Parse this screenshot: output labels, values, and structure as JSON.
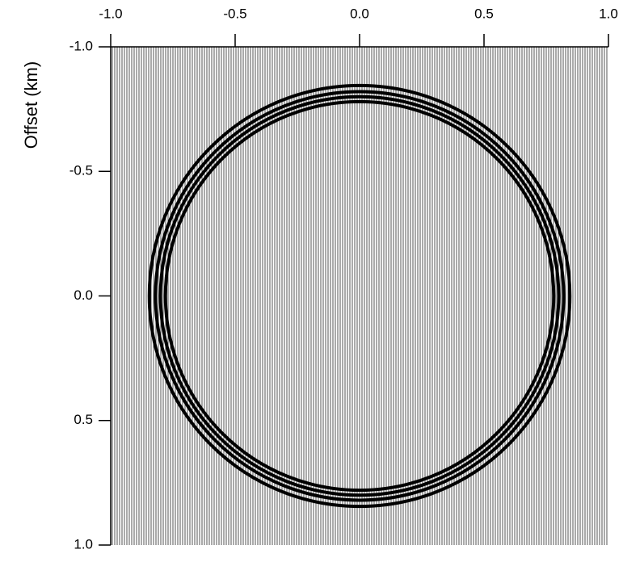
{
  "chart_data": {
    "type": "wavefield",
    "y_label": "Offset (km)",
    "xlim": [
      -1.0,
      1.0
    ],
    "xticks": [
      {
        "value": -1.0,
        "label": "-1.0"
      },
      {
        "value": -0.5,
        "label": "-0.5"
      },
      {
        "value": 0.0,
        "label": "0.0"
      },
      {
        "value": 0.5,
        "label": "0.5"
      },
      {
        "value": 1.0,
        "label": "1.0"
      }
    ],
    "ylim": [
      -1.0,
      1.0
    ],
    "yticks": [
      {
        "value": -1.0,
        "label": "-1.0"
      },
      {
        "value": -0.5,
        "label": "-0.5"
      },
      {
        "value": 0.0,
        "label": "0.0"
      },
      {
        "value": 0.5,
        "label": "0.5"
      },
      {
        "value": 1.0,
        "label": "1.0"
      }
    ],
    "center": [
      0.0,
      0.0
    ],
    "radii": [
      0.78,
      0.8,
      0.82,
      0.845
    ],
    "color": "#000000"
  }
}
